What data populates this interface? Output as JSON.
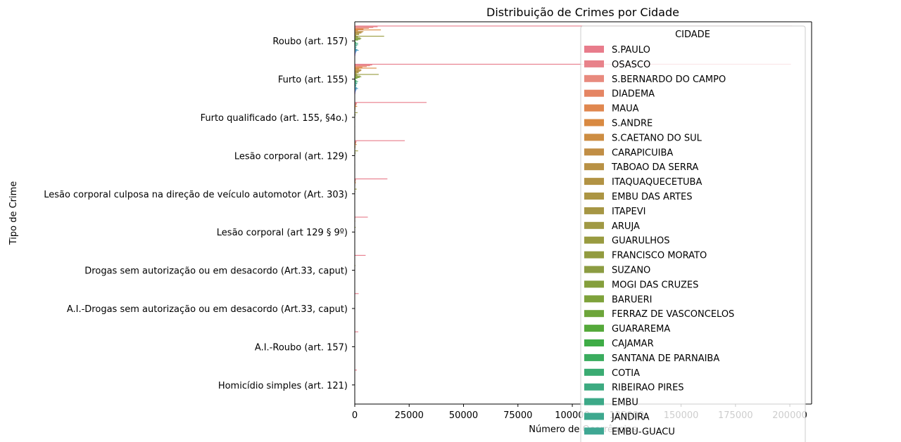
{
  "chart_data": {
    "type": "bar",
    "orientation": "horizontal",
    "title": "Distribuição de Crimes por Cidade",
    "xlabel": "Número de Ocorrências",
    "ylabel": "Tipo de Crime",
    "xlim": [
      0,
      210000
    ],
    "xticks": [
      0,
      25000,
      50000,
      75000,
      100000,
      125000,
      150000,
      175000,
      200000
    ],
    "grid": false,
    "legend_title": "CIDADE",
    "legend_position": "upper-right",
    "categories": [
      "Roubo (art. 157)",
      "Furto (art. 155)",
      "Furto qualificado (art. 155, §4o.)",
      "Lesão corporal (art. 129)",
      "Lesão corporal culposa na direção de veículo automotor (Art. 303)",
      "Lesão corporal (art 129 § 9º)",
      "Drogas sem autorização ou em desacordo (Art.33, caput)",
      "A.I.-Drogas sem autorização ou em desacordo (Art.33, caput)",
      "A.I.-Roubo (art. 157)",
      "Homicídio simples (art. 121)"
    ],
    "series": [
      {
        "name": "S.PAULO",
        "color": "#e87c8b",
        "values": [
          201000,
          200500,
          33000,
          23000,
          15000,
          6000,
          5000,
          1800,
          1600,
          1000
        ]
      },
      {
        "name": "OSASCO",
        "color": "#e8828a",
        "values": [
          10500,
          8000,
          1000,
          800,
          500,
          200,
          150,
          60,
          80,
          40
        ]
      },
      {
        "name": "S.BERNARDO DO CAMPO",
        "color": "#e88a7e",
        "values": [
          8500,
          7000,
          900,
          700,
          450,
          180,
          120,
          50,
          60,
          30
        ]
      },
      {
        "name": "DIADEMA",
        "color": "#e58563",
        "values": [
          6500,
          5500,
          700,
          600,
          350,
          150,
          150,
          50,
          60,
          30
        ]
      },
      {
        "name": "MAUA",
        "color": "#e0874f",
        "values": [
          4000,
          3500,
          450,
          400,
          250,
          100,
          80,
          30,
          40,
          20
        ]
      },
      {
        "name": "S.ANDRE",
        "color": "#d98a42",
        "values": [
          12000,
          10000,
          1100,
          900,
          550,
          250,
          150,
          60,
          70,
          40
        ]
      },
      {
        "name": "S.CAETANO DO SUL",
        "color": "#cd8d42",
        "values": [
          1500,
          2000,
          300,
          200,
          150,
          60,
          30,
          10,
          15,
          5
        ]
      },
      {
        "name": "CARAPICUIBA",
        "color": "#c18e45",
        "values": [
          4000,
          3000,
          350,
          350,
          200,
          100,
          80,
          30,
          40,
          20
        ]
      },
      {
        "name": "TABOAO DA SERRA",
        "color": "#b89144",
        "values": [
          3500,
          3000,
          300,
          300,
          200,
          80,
          50,
          20,
          30,
          15
        ]
      },
      {
        "name": "ITAQUAQUECETUBA",
        "color": "#b29344",
        "values": [
          3000,
          2500,
          300,
          300,
          180,
          90,
          70,
          30,
          30,
          20
        ]
      },
      {
        "name": "EMBU DAS ARTES",
        "color": "#ac9543",
        "values": [
          2000,
          1800,
          200,
          200,
          120,
          60,
          40,
          15,
          20,
          10
        ]
      },
      {
        "name": "ITAPEVI",
        "color": "#a69644",
        "values": [
          2000,
          1800,
          200,
          200,
          120,
          60,
          40,
          15,
          20,
          10
        ]
      },
      {
        "name": "ARUJA",
        "color": "#a09944",
        "values": [
          700,
          900,
          120,
          100,
          80,
          30,
          20,
          5,
          10,
          5
        ]
      },
      {
        "name": "GUARULHOS",
        "color": "#999b40",
        "values": [
          13500,
          11000,
          1300,
          1500,
          900,
          400,
          300,
          100,
          120,
          60
        ]
      },
      {
        "name": "FRANCISCO MORATO",
        "color": "#929b3f",
        "values": [
          1500,
          1200,
          150,
          150,
          100,
          50,
          30,
          10,
          15,
          10
        ]
      },
      {
        "name": "SUZANO",
        "color": "#8c9c42",
        "values": [
          2500,
          2500,
          300,
          300,
          180,
          80,
          50,
          20,
          30,
          15
        ]
      },
      {
        "name": "MOGI DAS CRUZES",
        "color": "#859f3c",
        "values": [
          3000,
          3000,
          350,
          350,
          250,
          100,
          60,
          20,
          30,
          15
        ]
      },
      {
        "name": "BARUERI",
        "color": "#7ea23b",
        "values": [
          2500,
          2200,
          250,
          250,
          180,
          60,
          40,
          15,
          20,
          10
        ]
      },
      {
        "name": "FERRAZ DE VASCONCELOS",
        "color": "#6da53a",
        "values": [
          1500,
          1200,
          150,
          150,
          100,
          50,
          30,
          10,
          15,
          10
        ]
      },
      {
        "name": "GUARAREMA",
        "color": "#55a93b",
        "values": [
          200,
          300,
          50,
          40,
          30,
          10,
          5,
          2,
          3,
          2
        ]
      },
      {
        "name": "CAJAMAR",
        "color": "#3eac46",
        "values": [
          400,
          500,
          60,
          60,
          40,
          20,
          10,
          5,
          5,
          3
        ]
      },
      {
        "name": "SANTANA DE PARNAIBA",
        "color": "#3aac5e",
        "values": [
          600,
          800,
          90,
          80,
          60,
          25,
          15,
          5,
          8,
          4
        ]
      },
      {
        "name": "COTIA",
        "color": "#3aab72",
        "values": [
          1500,
          1500,
          180,
          150,
          100,
          40,
          25,
          10,
          15,
          8
        ]
      },
      {
        "name": "RIBEIRAO PIRES",
        "color": "#3caa80",
        "values": [
          500,
          600,
          70,
          60,
          40,
          20,
          10,
          5,
          5,
          3
        ]
      },
      {
        "name": "EMBU",
        "color": "#3da988",
        "values": [
          1500,
          1200,
          150,
          150,
          100,
          50,
          30,
          10,
          15,
          10
        ]
      },
      {
        "name": "JANDIRA",
        "color": "#3ea88e",
        "values": [
          900,
          900,
          100,
          100,
          60,
          30,
          20,
          8,
          10,
          5
        ]
      },
      {
        "name": "EMBU-GUACU",
        "color": "#3fa793",
        "values": [
          400,
          500,
          60,
          60,
          40,
          20,
          10,
          5,
          5,
          3
        ]
      },
      {
        "name": "",
        "color": "#40a69a",
        "values": [
          800,
          700,
          80,
          80,
          50,
          25,
          15,
          5,
          8,
          4
        ]
      },
      {
        "name": "",
        "color": "#42a5a3",
        "values": [
          600,
          600,
          70,
          70,
          45,
          20,
          12,
          5,
          6,
          3
        ]
      },
      {
        "name": "",
        "color": "#44a3ad",
        "values": [
          500,
          500,
          60,
          60,
          40,
          18,
          10,
          4,
          5,
          3
        ]
      },
      {
        "name": "",
        "color": "#47a1b8",
        "values": [
          1200,
          1000,
          120,
          120,
          80,
          35,
          20,
          8,
          10,
          6
        ]
      },
      {
        "name": "",
        "color": "#4b9ec4",
        "values": [
          1800,
          1500,
          180,
          180,
          120,
          50,
          30,
          10,
          15,
          8
        ]
      },
      {
        "name": "",
        "color": "#529bd0",
        "values": [
          900,
          800,
          100,
          100,
          70,
          30,
          18,
          6,
          9,
          5
        ]
      },
      {
        "name": "",
        "color": "#5d96dd",
        "values": [
          700,
          700,
          80,
          80,
          50,
          25,
          15,
          5,
          7,
          4
        ]
      },
      {
        "name": "",
        "color": "#6d8fe6",
        "values": [
          500,
          500,
          60,
          60,
          40,
          18,
          10,
          4,
          5,
          3
        ]
      },
      {
        "name": "",
        "color": "#8287e8",
        "values": [
          400,
          400,
          50,
          50,
          30,
          15,
          8,
          3,
          4,
          2
        ]
      },
      {
        "name": "",
        "color": "#967de8",
        "values": [
          300,
          300,
          40,
          40,
          25,
          12,
          6,
          2,
          3,
          2
        ]
      },
      {
        "name": "",
        "color": "#a974e6",
        "values": [
          300,
          300,
          40,
          40,
          25,
          12,
          6,
          2,
          3,
          2
        ]
      },
      {
        "name": "",
        "color": "#bb6be2",
        "values": [
          200,
          200,
          30,
          30,
          20,
          8,
          4,
          2,
          2,
          1
        ]
      }
    ]
  }
}
